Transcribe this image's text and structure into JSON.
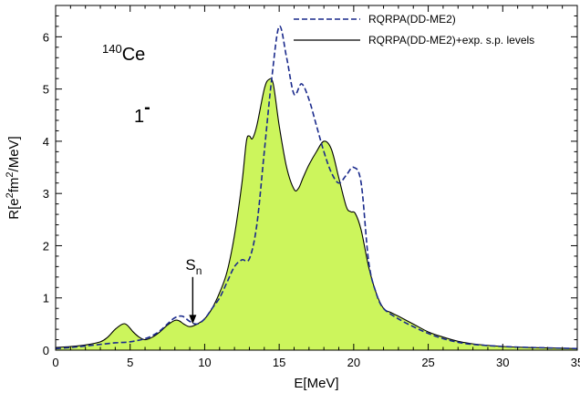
{
  "chart_data": {
    "type": "area",
    "xlabel": "E[MeV]",
    "ylabel_parts": {
      "base": "R[e",
      "sup1": "2",
      "mid": "fm",
      "sup2": "2",
      "end": "/MeV]"
    },
    "xlim": [
      0,
      35
    ],
    "ylim": [
      0,
      6.6
    ],
    "x_ticks": [
      0,
      5,
      10,
      15,
      20,
      25,
      30,
      35
    ],
    "y_ticks": [
      0,
      1,
      2,
      3,
      4,
      5,
      6
    ],
    "grid": false,
    "legend_position": "top-right",
    "fill_color": "#ccf55c",
    "dashed_color": "#1a2a8c",
    "solid_color": "#000000",
    "annotations": {
      "nucleus_mass": "140",
      "nucleus_symbol": "Ce",
      "multipole": "1",
      "multipole_sign": "-",
      "threshold_symbol": "S",
      "threshold_sub": "n",
      "threshold_x": 9.2,
      "threshold_arrow_from_y": 1.4,
      "threshold_arrow_to_y": 0.5
    },
    "series": [
      {
        "name": "RQRPA(DD-ME2)",
        "style": "dashed",
        "x": [
          0,
          1,
          2,
          3,
          4,
          5,
          6,
          6.5,
          7,
          7.5,
          8,
          8.5,
          9,
          9.5,
          10,
          10.5,
          11,
          11.5,
          12,
          12.5,
          13,
          13.5,
          14,
          14.5,
          15,
          15.5,
          16,
          16.5,
          17,
          17.5,
          18,
          18.5,
          19,
          19.5,
          20,
          20.5,
          21,
          21.5,
          22,
          23,
          24,
          25,
          26,
          27,
          28,
          30,
          32,
          35
        ],
        "y": [
          0.03,
          0.05,
          0.08,
          0.11,
          0.14,
          0.16,
          0.22,
          0.28,
          0.37,
          0.5,
          0.62,
          0.65,
          0.55,
          0.5,
          0.6,
          0.8,
          1.0,
          1.3,
          1.6,
          1.73,
          1.75,
          2.4,
          3.8,
          5.2,
          6.2,
          5.6,
          4.9,
          5.1,
          4.8,
          4.3,
          3.8,
          3.4,
          3.2,
          3.35,
          3.5,
          3.2,
          1.7,
          1.1,
          0.8,
          0.6,
          0.45,
          0.32,
          0.22,
          0.15,
          0.11,
          0.07,
          0.05,
          0.03
        ]
      },
      {
        "name": "RQRPA(DD-ME2)+exp. s.p. levels",
        "style": "solid-filled",
        "x": [
          0,
          1,
          2,
          3,
          3.5,
          4,
          4.5,
          4.8,
          5.2,
          5.6,
          6,
          6.5,
          7,
          7.5,
          8,
          8.3,
          8.6,
          9,
          9.5,
          10,
          10.5,
          11,
          11.5,
          12,
          12.5,
          12.8,
          13,
          13.2,
          13.5,
          14,
          14.3,
          14.6,
          15,
          15.5,
          16,
          16.3,
          16.6,
          17,
          17.5,
          18,
          18.5,
          19,
          19.5,
          19.8,
          20.1,
          20.5,
          21,
          21.5,
          22,
          22.5,
          23,
          24,
          25,
          26,
          27,
          28,
          30,
          32,
          35
        ],
        "y": [
          0.05,
          0.07,
          0.1,
          0.16,
          0.25,
          0.4,
          0.5,
          0.48,
          0.35,
          0.25,
          0.2,
          0.25,
          0.35,
          0.48,
          0.57,
          0.56,
          0.5,
          0.45,
          0.5,
          0.6,
          0.8,
          1.1,
          1.5,
          2.2,
          3.2,
          4.0,
          4.1,
          4.05,
          4.3,
          5.0,
          5.18,
          5.1,
          4.3,
          3.5,
          3.08,
          3.1,
          3.3,
          3.55,
          3.8,
          4.0,
          3.85,
          3.3,
          2.75,
          2.65,
          2.62,
          2.3,
          1.6,
          1.1,
          0.8,
          0.72,
          0.65,
          0.5,
          0.35,
          0.25,
          0.17,
          0.12,
          0.07,
          0.05,
          0.03
        ]
      }
    ]
  }
}
